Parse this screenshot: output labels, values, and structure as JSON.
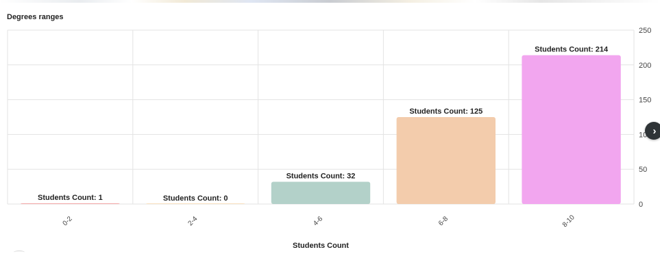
{
  "chart_data": {
    "type": "bar",
    "title": "Degrees ranges",
    "xlabel": "Students Count",
    "ylabel": "",
    "categories": [
      "0-2",
      "2-4",
      "4-6",
      "6-8",
      "8-10"
    ],
    "series": [
      {
        "values": [
          1,
          0,
          32,
          125,
          214
        ],
        "labels": [
          "Students Count: 1",
          "Students Count: 0",
          "Students Count: 32",
          "Students Count: 125",
          "Students Count: 214"
        ],
        "colors": [
          "#f3a6a6",
          "#f5d6a8",
          "#b3d1c9",
          "#f3ccac",
          "#f2a6ef"
        ]
      }
    ],
    "ylim": [
      0,
      250
    ],
    "yticks": [
      0,
      50,
      100,
      150,
      200,
      250
    ],
    "grid": true,
    "y_axis_side": "right",
    "legend": "none"
  },
  "nav": {
    "next_icon": "chevron-right-icon",
    "next_glyph": "›"
  }
}
